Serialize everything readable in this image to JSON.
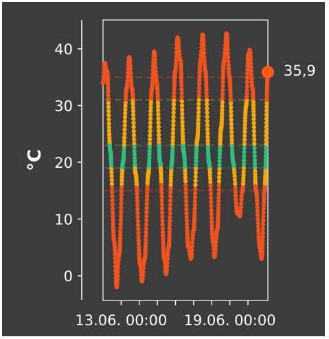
{
  "chart_data": {
    "type": "line",
    "ylabel": "°C",
    "ylim": [
      -5,
      45
    ],
    "y_ticks": [
      0,
      10,
      20,
      30,
      40
    ],
    "x_tick_labels": [
      "13.06. 00:00",
      "19.06. 00:00"
    ],
    "x_tick_positions": [
      1,
      7
    ],
    "x_minor_ticks": [
      1,
      2,
      3,
      4,
      5,
      6,
      7,
      8
    ],
    "x_range_days": [
      0,
      9.1
    ],
    "last_value_label": "35,9",
    "series": [
      {
        "values": [
          [
            0.0,
            34
          ],
          [
            0.1,
            37.5
          ],
          [
            0.22,
            36
          ],
          [
            0.4,
            22
          ],
          [
            0.62,
            6
          ],
          [
            0.75,
            -2
          ],
          [
            0.9,
            4
          ],
          [
            1.1,
            20
          ],
          [
            1.3,
            33
          ],
          [
            1.45,
            38.5
          ],
          [
            1.6,
            33
          ],
          [
            1.8,
            18
          ],
          [
            2.05,
            2
          ],
          [
            2.15,
            -1
          ],
          [
            2.3,
            3
          ],
          [
            2.5,
            18
          ],
          [
            2.7,
            33
          ],
          [
            2.82,
            39.5
          ],
          [
            2.97,
            34
          ],
          [
            3.15,
            20
          ],
          [
            3.38,
            3
          ],
          [
            3.48,
            0.3
          ],
          [
            3.62,
            5
          ],
          [
            3.8,
            20
          ],
          [
            3.98,
            36
          ],
          [
            4.12,
            42.0
          ],
          [
            4.27,
            38
          ],
          [
            4.45,
            22
          ],
          [
            4.72,
            5
          ],
          [
            4.85,
            3
          ],
          [
            5.0,
            8
          ],
          [
            5.2,
            24
          ],
          [
            5.38,
            38
          ],
          [
            5.5,
            42.5
          ],
          [
            5.65,
            36
          ],
          [
            5.85,
            20
          ],
          [
            6.08,
            6
          ],
          [
            6.15,
            3.3
          ],
          [
            6.3,
            8
          ],
          [
            6.52,
            26
          ],
          [
            6.68,
            38
          ],
          [
            6.82,
            42.7
          ],
          [
            6.98,
            35
          ],
          [
            7.18,
            20
          ],
          [
            7.42,
            11
          ],
          [
            7.55,
            10.5
          ],
          [
            7.7,
            15
          ],
          [
            7.9,
            30
          ],
          [
            8.02,
            39
          ],
          [
            8.1,
            39.8
          ],
          [
            8.25,
            33
          ],
          [
            8.45,
            15
          ],
          [
            8.65,
            5
          ],
          [
            8.75,
            3
          ],
          [
            8.92,
            15
          ],
          [
            9.1,
            35.9
          ]
        ]
      }
    ],
    "band_colors": {
      "cold": "#f0541e",
      "warm": "#f5a60c",
      "ideal": "#2fbe80"
    },
    "band_thresholds": [
      16,
      19,
      23,
      31
    ],
    "endpoint_color": "#ff5a14"
  }
}
